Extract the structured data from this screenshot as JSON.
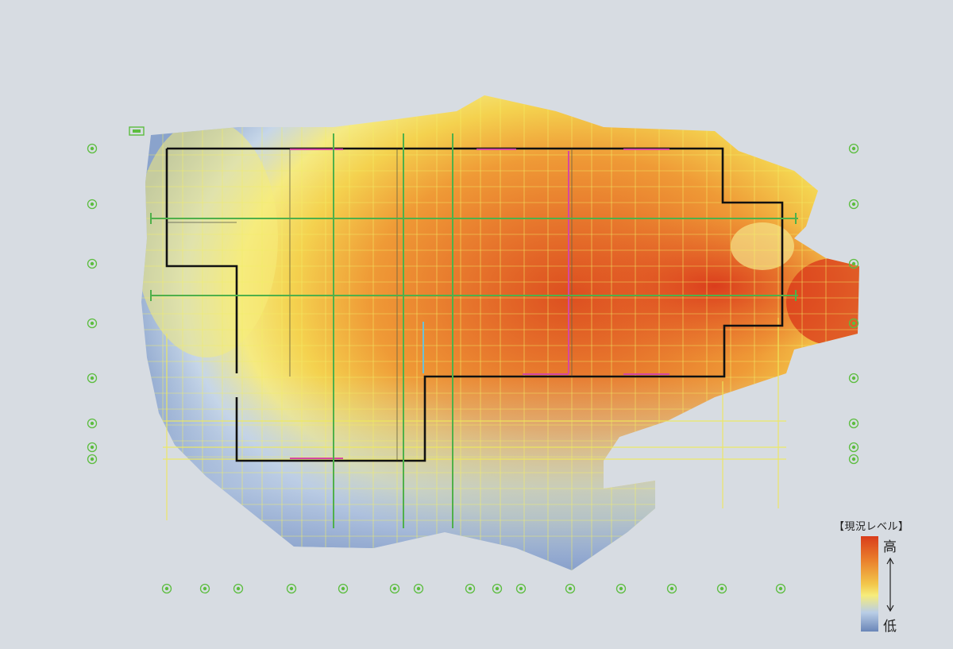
{
  "legend": {
    "title": "【現況レベル】",
    "high_label": "高",
    "low_label": "低",
    "gradient": [
      "#d93d1b",
      "#ea7f2c",
      "#f2c64a",
      "#f6ec7a",
      "#b9cde6",
      "#6a86b8"
    ]
  },
  "colors": {
    "background": "#d7dce2",
    "grid_line": "#f2ef58",
    "marker": "#5cbd3f",
    "wall": "#111111",
    "pipe": "#4fb04a",
    "accent": "#d648a0"
  },
  "icons": {
    "grid_marker": "circle-axis-marker-icon",
    "tag_marker": "rectangle-tag-icon"
  }
}
